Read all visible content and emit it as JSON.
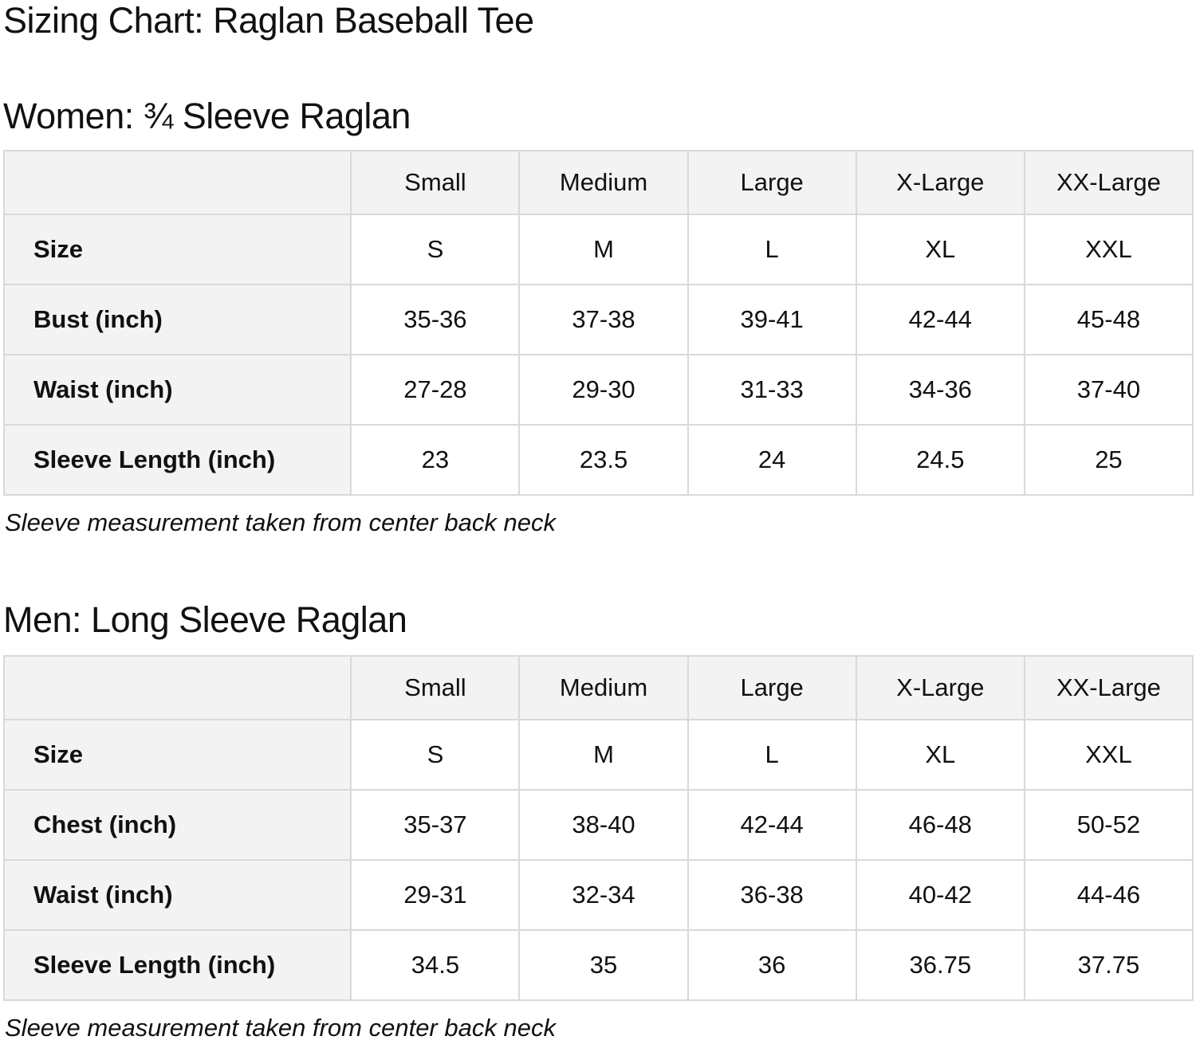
{
  "page": {
    "title": "Sizing Chart: Raglan Baseball Tee"
  },
  "colors": {
    "page_bg": "#ffffff",
    "text": "#111111",
    "head_bg": "#f3f3f3",
    "border": "#d9d9d9"
  },
  "sections": [
    {
      "id": "women",
      "heading": "Women: ¾ Sleeve Raglan",
      "note": "Sleeve measurement taken from center back neck",
      "table": {
        "columns": [
          "",
          "Small",
          "Medium",
          "Large",
          "X-Large",
          "XX-Large"
        ],
        "rows": [
          {
            "label": "Size",
            "values": [
              "S",
              "M",
              "L",
              "XL",
              "XXL"
            ]
          },
          {
            "label": "Bust (inch)",
            "values": [
              "35-36",
              "37-38",
              "39-41",
              "42-44",
              "45-48"
            ]
          },
          {
            "label": "Waist (inch)",
            "values": [
              "27-28",
              "29-30",
              "31-33",
              "34-36",
              "37-40"
            ]
          },
          {
            "label": "Sleeve Length (inch)",
            "values": [
              "23",
              "23.5",
              "24",
              "24.5",
              "25"
            ]
          }
        ]
      }
    },
    {
      "id": "men",
      "heading": "Men: Long Sleeve Raglan",
      "note": "Sleeve measurement taken from center back neck",
      "table": {
        "columns": [
          "",
          "Small",
          "Medium",
          "Large",
          "X-Large",
          "XX-Large"
        ],
        "rows": [
          {
            "label": "Size",
            "values": [
              "S",
              "M",
              "L",
              "XL",
              "XXL"
            ]
          },
          {
            "label": "Chest (inch)",
            "values": [
              "35-37",
              "38-40",
              "42-44",
              "46-48",
              "50-52"
            ]
          },
          {
            "label": "Waist (inch)",
            "values": [
              "29-31",
              "32-34",
              "36-38",
              "40-42",
              "44-46"
            ]
          },
          {
            "label": "Sleeve Length (inch)",
            "values": [
              "34.5",
              "35",
              "36",
              "36.75",
              "37.75"
            ]
          }
        ]
      }
    }
  ]
}
